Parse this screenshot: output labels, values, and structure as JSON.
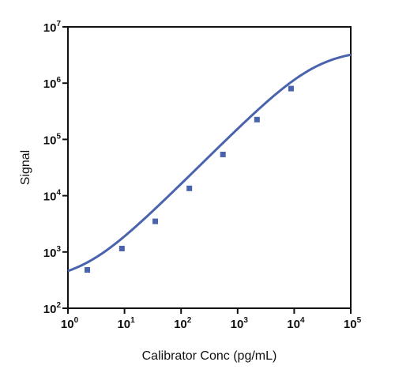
{
  "chart_data": {
    "type": "scatter",
    "title": "",
    "xlabel": "Calibrator Conc (pg/mL)",
    "ylabel": "Signal",
    "x_scale": "log",
    "y_scale": "log",
    "xlim": [
      1,
      100000
    ],
    "ylim": [
      100,
      10000000
    ],
    "x_ticks": [
      {
        "base": "10",
        "exp": "0",
        "value": 1
      },
      {
        "base": "10",
        "exp": "1",
        "value": 10
      },
      {
        "base": "10",
        "exp": "2",
        "value": 100
      },
      {
        "base": "10",
        "exp": "3",
        "value": 1000
      },
      {
        "base": "10",
        "exp": "4",
        "value": 10000
      },
      {
        "base": "10",
        "exp": "5",
        "value": 100000
      }
    ],
    "y_ticks": [
      {
        "base": "10",
        "exp": "2",
        "value": 100
      },
      {
        "base": "10",
        "exp": "3",
        "value": 1000
      },
      {
        "base": "10",
        "exp": "4",
        "value": 10000
      },
      {
        "base": "10",
        "exp": "5",
        "value": 100000
      },
      {
        "base": "10",
        "exp": "6",
        "value": 1000000
      },
      {
        "base": "10",
        "exp": "7",
        "value": 10000000
      }
    ],
    "points": [
      {
        "x": 2.2,
        "y": 480
      },
      {
        "x": 9,
        "y": 1150
      },
      {
        "x": 35,
        "y": 3500
      },
      {
        "x": 140,
        "y": 13500
      },
      {
        "x": 550,
        "y": 54000
      },
      {
        "x": 2200,
        "y": 225000
      },
      {
        "x": 8800,
        "y": 800000
      }
    ],
    "fit_curve": {
      "type": "4PL",
      "bottom": 300,
      "top": 4000000,
      "ec50": 25000,
      "hill": 1.0
    },
    "grid": false,
    "legend": "none",
    "colors": {
      "series": "#4a63ad",
      "axis": "#111111"
    }
  }
}
